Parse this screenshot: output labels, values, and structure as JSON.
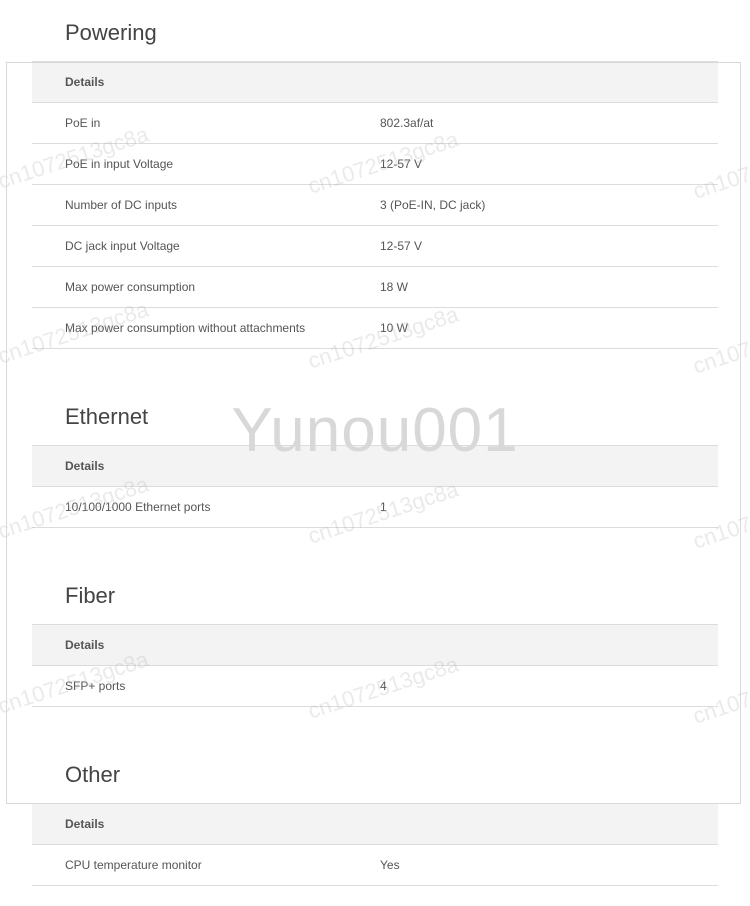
{
  "watermark_big": "Yunou001",
  "watermark_small": "cn1072513gc8a",
  "sections": [
    {
      "title": "Powering",
      "details_label": "Details",
      "rows": [
        {
          "label": "PoE in",
          "value": "802.3af/at"
        },
        {
          "label": "PoE in input Voltage",
          "value": "12-57 V"
        },
        {
          "label": "Number of DC inputs",
          "value": "3 (PoE-IN, DC jack)"
        },
        {
          "label": "DC jack input Voltage",
          "value": "12-57 V"
        },
        {
          "label": "Max power consumption",
          "value": "18 W"
        },
        {
          "label": "Max power consumption without attachments",
          "value": "10 W"
        }
      ]
    },
    {
      "title": "Ethernet",
      "details_label": "Details",
      "rows": [
        {
          "label": "10/100/1000 Ethernet ports",
          "value": "1"
        }
      ]
    },
    {
      "title": "Fiber",
      "details_label": "Details",
      "rows": [
        {
          "label": "SFP+ ports",
          "value": "4"
        }
      ]
    },
    {
      "title": "Other",
      "details_label": "Details",
      "rows": [
        {
          "label": "CPU temperature monitor",
          "value": "Yes"
        }
      ]
    }
  ]
}
